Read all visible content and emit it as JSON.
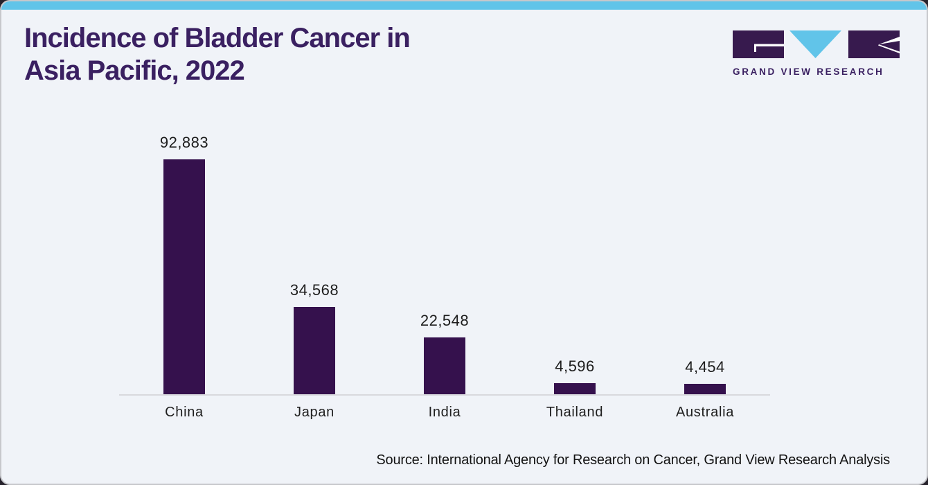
{
  "header": {
    "title_lines": [
      "Incidence of Bladder Cancer in",
      "Asia Pacific, 2022"
    ]
  },
  "logo": {
    "brand_text": "GRAND VIEW RESEARCH",
    "icon_names": [
      "g-block-icon",
      "v-triangle-icon",
      "r-block-icon"
    ]
  },
  "colors": {
    "accent_cyan": "#61c4e9",
    "bar_purple": "#35114d",
    "title_purple": "#3a2061",
    "card_background": "#f0f3f8",
    "axis_gray": "#d8d9dd"
  },
  "chart_data": {
    "type": "bar",
    "title": "Incidence of Bladder Cancer in Asia Pacific, 2022",
    "categories": [
      "China",
      "Japan",
      "India",
      "Thailand",
      "Australia"
    ],
    "values": [
      92883,
      34568,
      22548,
      4596,
      4454
    ],
    "value_labels": [
      "92,883",
      "34,568",
      "22,548",
      "4,596",
      "4,454"
    ],
    "xlabel": "",
    "ylabel": "",
    "ylim": [
      0,
      100000
    ],
    "grid": false,
    "legend": false,
    "data_labels_position": "above-bars",
    "bar_color": "#35114d"
  },
  "footer": {
    "source": "Source: International Agency for Research on Cancer, Grand View Research Analysis"
  }
}
